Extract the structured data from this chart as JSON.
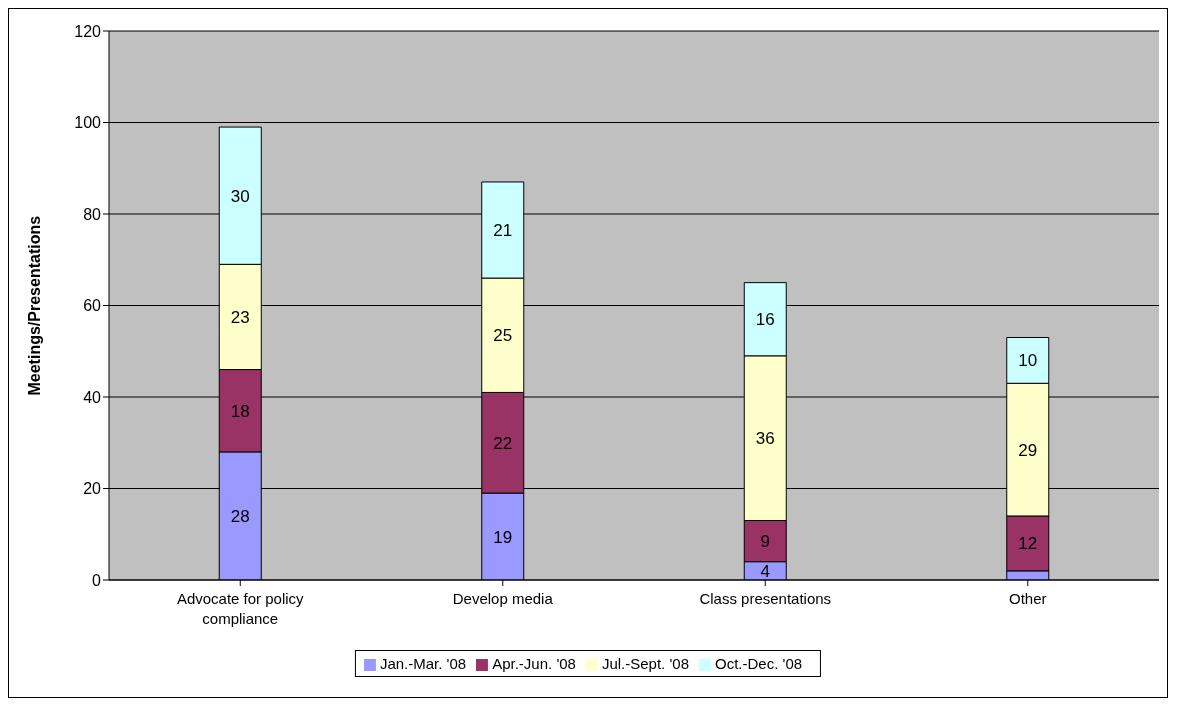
{
  "chart_data": {
    "type": "bar",
    "stacked": true,
    "ylabel": "Meetings/Presentations",
    "categories": [
      "Advocate for policy compliance",
      "Develop media",
      "Class presentations",
      "Other"
    ],
    "series": [
      {
        "name": "Jan.-Mar. '08",
        "color": "#9999ff",
        "values": [
          28,
          19,
          4,
          2
        ],
        "value_labels": [
          "28",
          "19",
          "4",
          null
        ]
      },
      {
        "name": "Apr.-Jun. '08",
        "color": "#993366",
        "values": [
          18,
          22,
          9,
          12
        ],
        "value_labels": [
          "18",
          "22",
          "9",
          "12"
        ]
      },
      {
        "name": "Jul.-Sept. '08",
        "color": "#ffffcc",
        "values": [
          23,
          25,
          36,
          29
        ],
        "value_labels": [
          "23",
          "25",
          "36",
          "29"
        ]
      },
      {
        "name": "Oct.-Dec. '08",
        "color": "#ccffff",
        "values": [
          30,
          21,
          16,
          10
        ],
        "value_labels": [
          "30",
          "21",
          "16",
          "10"
        ]
      }
    ],
    "ylim": [
      0,
      120
    ],
    "yticks": [
      0,
      20,
      40,
      60,
      80,
      100,
      120
    ],
    "grid": "y",
    "legend": "bottom"
  }
}
